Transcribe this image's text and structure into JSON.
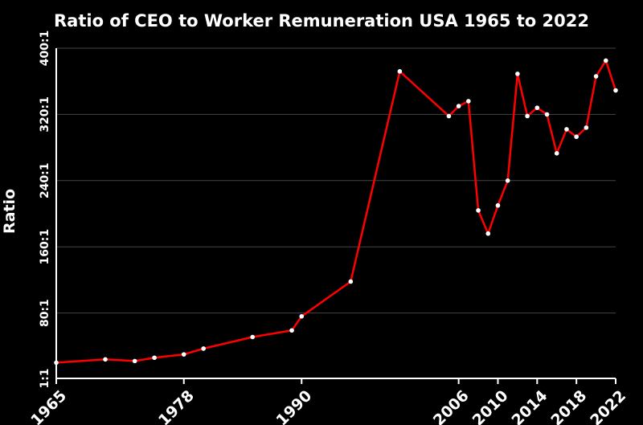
{
  "chart_data": {
    "type": "line",
    "title": "Ratio of CEO to Worker Remuneration USA 1965 to 2022",
    "xlabel": "",
    "ylabel": "Ratio",
    "xlim": [
      1965,
      2022
    ],
    "ylim": [
      1,
      400
    ],
    "y_ticks": [
      {
        "value": 1,
        "label": "1:1"
      },
      {
        "value": 80,
        "label": "80:1"
      },
      {
        "value": 160,
        "label": "160:1"
      },
      {
        "value": 240,
        "label": "240:1"
      },
      {
        "value": 320,
        "label": "320:1"
      },
      {
        "value": 400,
        "label": "400:1"
      }
    ],
    "x_ticks": [
      1965,
      1978,
      1990,
      2006,
      2010,
      2014,
      2018,
      2022
    ],
    "grid": true,
    "line_color": "#ff0000",
    "marker_color": "#ffffff",
    "series": [
      {
        "x": [
          1965,
          1970,
          1973,
          1975,
          1978,
          1980,
          1985,
          1989,
          1990,
          1995,
          2000,
          2005,
          2006,
          2007,
          2008,
          2009,
          2010,
          2011,
          2012,
          2013,
          2014,
          2015,
          2016,
          2017,
          2018,
          2019,
          2020,
          2021,
          2022
        ],
        "y": [
          20,
          24,
          22,
          26,
          30,
          37,
          51,
          59,
          76,
          118,
          372,
          318,
          330,
          336,
          204,
          176,
          210,
          240,
          369,
          318,
          328,
          320,
          273,
          302,
          293,
          304,
          366,
          385,
          349
        ]
      }
    ]
  }
}
